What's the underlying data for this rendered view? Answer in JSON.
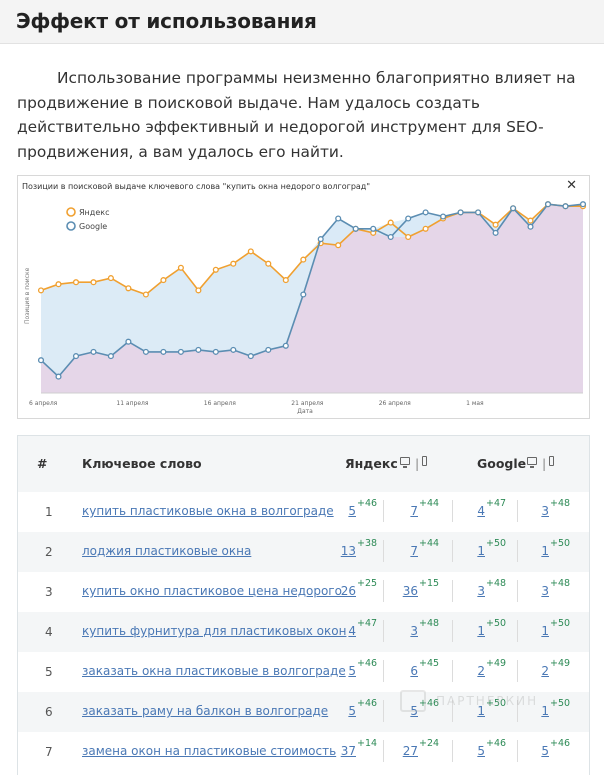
{
  "section": {
    "title": "Эффект от использования",
    "intro": "Использование программы неизменно благоприятно влияет на продвижение в поисковой выдаче. Нам удалось создать действительно эффективный и недорогой инструмент для SEO-продвижения, а вам удалось его найти."
  },
  "chart_panel": {
    "close_glyph": "✕"
  },
  "chart_data": {
    "type": "area",
    "title": "Позиции в поисковой выдаче ключевого слова \"купить окна недорого волгоград\"",
    "ylabel": "Позиция в поиске",
    "xlabel": "Дата",
    "x_tick_labels": [
      "6 апреля",
      "11 апреля",
      "16 апреля",
      "21 апреля",
      "26 апреля",
      "1 мая"
    ],
    "legend_position": "top-left",
    "y_ticks_shown": false,
    "series": [
      {
        "name": "Яндекс",
        "color": "#f0a030",
        "values": [
          20,
          17,
          16,
          16,
          14,
          19,
          22,
          15,
          9,
          20,
          10,
          7,
          1,
          7,
          15,
          5,
          -3,
          -2,
          -10,
          -8,
          -13,
          -6,
          -10,
          -15,
          -18,
          -18,
          -12,
          -20,
          -14,
          -22,
          -21,
          -21
        ]
      },
      {
        "name": "Google",
        "color": "#5b8db2",
        "values": [
          54,
          62,
          52,
          50,
          52,
          45,
          50,
          50,
          50,
          49,
          50,
          49,
          52,
          49,
          47,
          22,
          -5,
          -15,
          -10,
          -10,
          -6,
          -15,
          -18,
          -16,
          -18,
          -18,
          -8,
          -20,
          -11,
          -22,
          -21,
          -22
        ]
      }
    ]
  },
  "table": {
    "headers": {
      "num": "#",
      "keyword": "Ключевое слово",
      "yandex": "Яндекс",
      "google": "Google",
      "divider": "|"
    },
    "rows": [
      {
        "num": "1",
        "keyword": "купить пластиковые окна в волгограде",
        "y_desktop": "5",
        "y_desktop_d": "+46",
        "y_mobile": "7",
        "y_mobile_d": "+44",
        "g_desktop": "4",
        "g_desktop_d": "+47",
        "g_mobile": "3",
        "g_mobile_d": "+48"
      },
      {
        "num": "2",
        "keyword": "лоджия пластиковые окна",
        "y_desktop": "13",
        "y_desktop_d": "+38",
        "y_mobile": "7",
        "y_mobile_d": "+44",
        "g_desktop": "1",
        "g_desktop_d": "+50",
        "g_mobile": "1",
        "g_mobile_d": "+50"
      },
      {
        "num": "3",
        "keyword": "купить окно пластиковое цена недорого",
        "y_desktop": "26",
        "y_desktop_d": "+25",
        "y_mobile": "36",
        "y_mobile_d": "+15",
        "g_desktop": "3",
        "g_desktop_d": "+48",
        "g_mobile": "3",
        "g_mobile_d": "+48"
      },
      {
        "num": "4",
        "keyword": "купить фурнитура для пластиковых окон",
        "y_desktop": "4",
        "y_desktop_d": "+47",
        "y_mobile": "3",
        "y_mobile_d": "+48",
        "g_desktop": "1",
        "g_desktop_d": "+50",
        "g_mobile": "1",
        "g_mobile_d": "+50"
      },
      {
        "num": "5",
        "keyword": "заказать окна пластиковые в волгограде",
        "y_desktop": "5",
        "y_desktop_d": "+46",
        "y_mobile": "6",
        "y_mobile_d": "+45",
        "g_desktop": "2",
        "g_desktop_d": "+49",
        "g_mobile": "2",
        "g_mobile_d": "+49"
      },
      {
        "num": "6",
        "keyword": "заказать раму на балкон в волгограде",
        "y_desktop": "5",
        "y_desktop_d": "+46",
        "y_mobile": "5",
        "y_mobile_d": "+46",
        "g_desktop": "1",
        "g_desktop_d": "+50",
        "g_mobile": "1",
        "g_mobile_d": "+50"
      },
      {
        "num": "7",
        "keyword": "замена окон на пластиковые стоимость",
        "y_desktop": "37",
        "y_desktop_d": "+14",
        "y_mobile": "27",
        "y_mobile_d": "+24",
        "g_desktop": "5",
        "g_desktop_d": "+46",
        "g_mobile": "5",
        "g_mobile_d": "+46"
      }
    ]
  },
  "watermark": {
    "text": "ПАРТНЕРКИН"
  }
}
